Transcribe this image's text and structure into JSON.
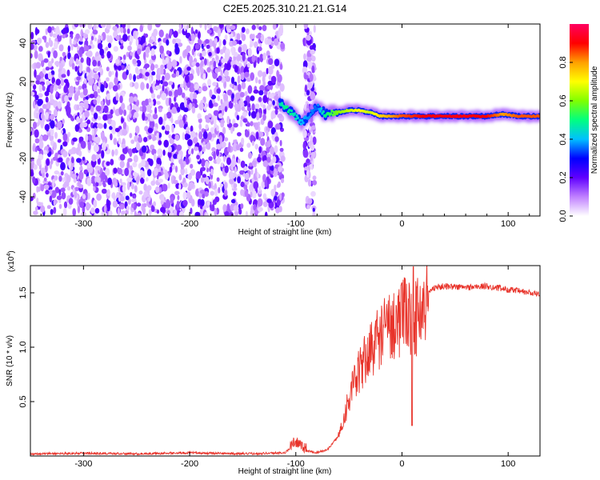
{
  "chart_data": [
    {
      "type": "heatmap",
      "title": "C2E5.2025.310.21.21.G14",
      "xlabel": "Height of straight line (km)",
      "ylabel": "Frequency (Hz)",
      "xlim": [
        -350,
        130
      ],
      "ylim": [
        -50,
        50
      ],
      "xticks": [
        -300,
        -200,
        -100,
        0,
        100
      ],
      "yticks": [
        -40,
        -20,
        0,
        20,
        40
      ],
      "colorbar": {
        "label": "Normalized spectral amplitude",
        "range": [
          0,
          1
        ],
        "ticks": [
          "0.0",
          "0.2",
          "0.4",
          "0.6",
          "0.8"
        ],
        "colors": [
          "#ffffff",
          "#c080ff",
          "#6000ff",
          "#0000ff",
          "#00c0ff",
          "#00ff80",
          "#80ff00",
          "#ffff00",
          "#ffa000",
          "#ff0000",
          "#ff0060"
        ]
      },
      "noise_region_km": [
        -350,
        -112
      ],
      "noise_column_km": [
        -92,
        -82
      ],
      "signal_track": [
        {
          "x": -115,
          "f": 9,
          "amp": 0.45
        },
        {
          "x": -108,
          "f": 6,
          "amp": 0.5
        },
        {
          "x": -100,
          "f": 2,
          "amp": 0.45
        },
        {
          "x": -95,
          "f": -2,
          "amp": 0.4
        },
        {
          "x": -80,
          "f": 7,
          "amp": 0.35
        },
        {
          "x": -72,
          "f": 3,
          "amp": 0.5
        },
        {
          "x": -60,
          "f": 4,
          "amp": 0.6
        },
        {
          "x": -50,
          "f": 5,
          "amp": 0.65
        },
        {
          "x": -40,
          "f": 5,
          "amp": 0.7
        },
        {
          "x": -30,
          "f": 4,
          "amp": 0.65
        },
        {
          "x": -20,
          "f": 2,
          "amp": 0.75
        },
        {
          "x": -10,
          "f": 2,
          "amp": 0.8
        },
        {
          "x": 0,
          "f": 2,
          "amp": 0.85
        },
        {
          "x": 20,
          "f": 2,
          "amp": 0.9
        },
        {
          "x": 50,
          "f": 2,
          "amp": 0.92
        },
        {
          "x": 80,
          "f": 2,
          "amp": 0.9
        },
        {
          "x": 95,
          "f": 3,
          "amp": 0.8
        },
        {
          "x": 110,
          "f": 2,
          "amp": 0.85
        },
        {
          "x": 130,
          "f": 2,
          "amp": 0.85
        }
      ]
    },
    {
      "type": "line",
      "xlabel": "Height of straight line (km)",
      "ylabel": "SNR (10 * v/v)",
      "y_multiplier": "(x10",
      "y_multiplier_exp": "4",
      "xlim": [
        -350,
        130
      ],
      "ylim": [
        0,
        1.75
      ],
      "xticks": [
        -300,
        -200,
        -100,
        0,
        100
      ],
      "yticks": [
        "0.5",
        "1.0",
        "1.5"
      ],
      "line_color": "#e8332a",
      "series": [
        {
          "name": "SNR",
          "x": [
            -350,
            -300,
            -250,
            -200,
            -150,
            -110,
            -100,
            -95,
            -90,
            -80,
            -70,
            -60,
            -55,
            -50,
            -40,
            -30,
            -20,
            -10,
            0,
            5,
            10,
            20,
            25,
            30,
            40,
            60,
            80,
            100,
            120,
            130
          ],
          "y": [
            0.02,
            0.025,
            0.02,
            0.03,
            0.02,
            0.03,
            0.12,
            0.08,
            0.05,
            0.03,
            0.06,
            0.18,
            0.35,
            0.55,
            0.8,
            1.0,
            1.15,
            1.25,
            1.3,
            1.35,
            1.25,
            1.42,
            1.5,
            1.55,
            1.56,
            1.55,
            1.56,
            1.53,
            1.5,
            1.48
          ]
        }
      ]
    }
  ]
}
